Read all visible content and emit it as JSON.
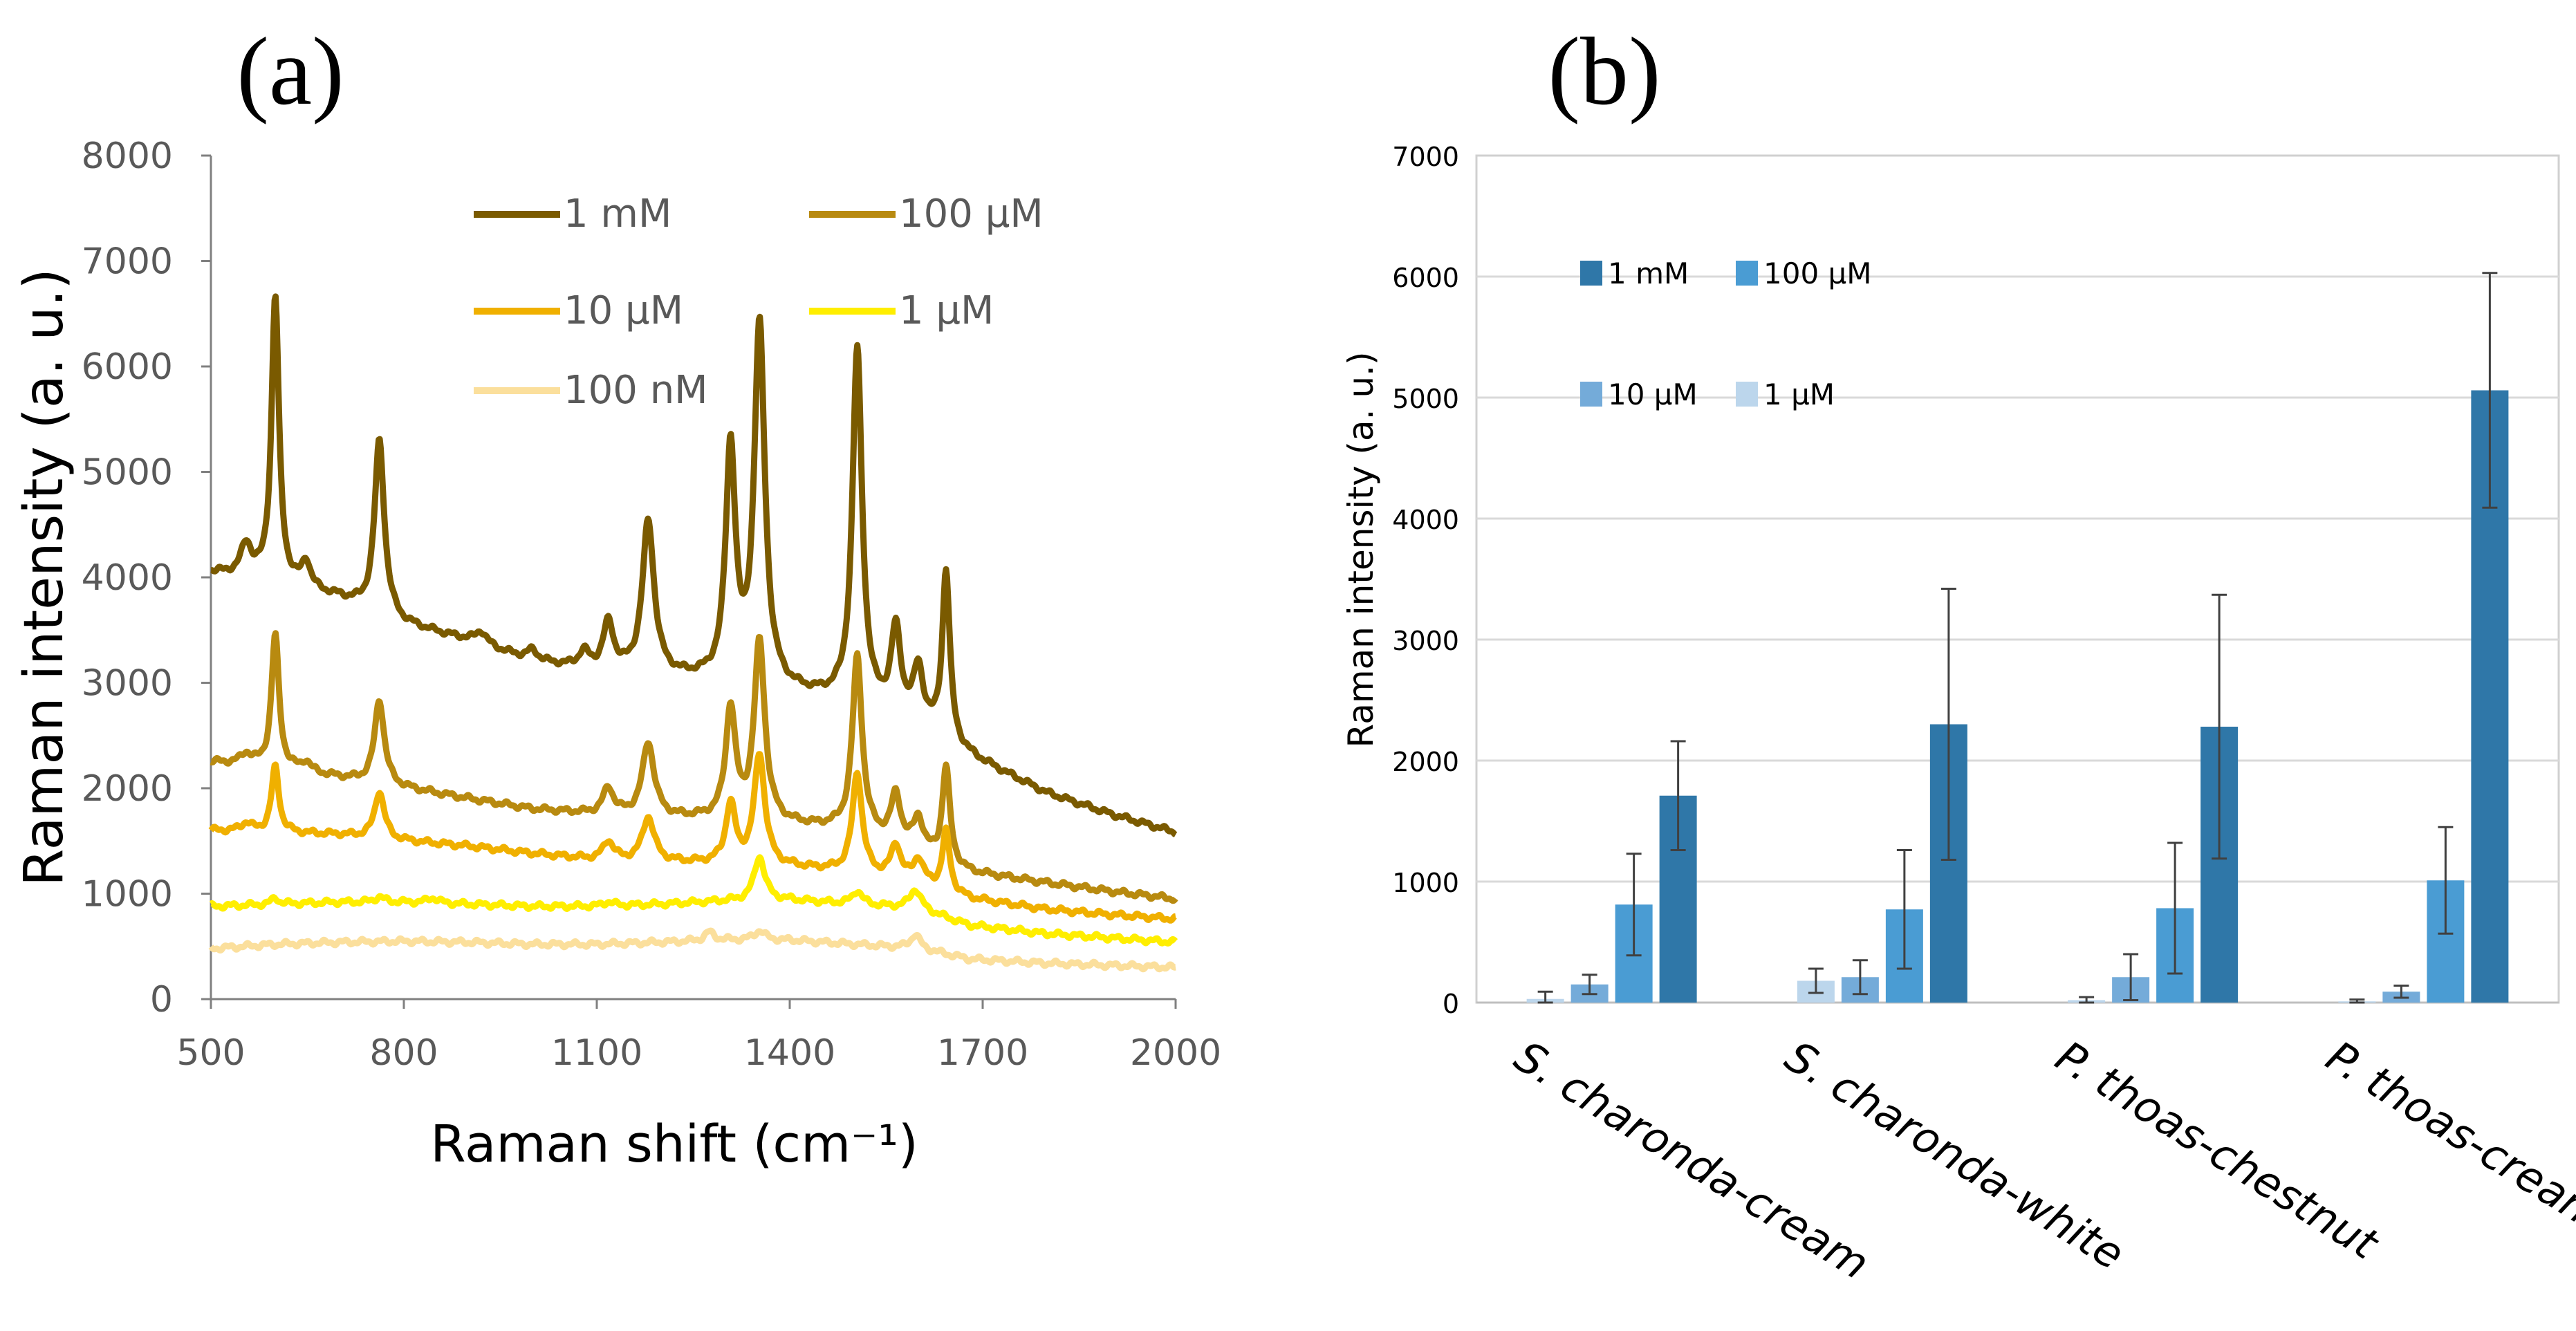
{
  "chart_data": [
    {
      "panel_label": "(a)",
      "type": "line",
      "title": "",
      "xlabel": "Raman shift (cm⁻¹)",
      "ylabel": "Raman intensity (a. u.)",
      "xlim": [
        500,
        2000
      ],
      "ylim": [
        0,
        8000
      ],
      "xticks": [
        500,
        800,
        1100,
        1400,
        1700,
        2000
      ],
      "yticks": [
        0,
        1000,
        2000,
        3000,
        4000,
        5000,
        6000,
        7000,
        8000
      ],
      "grid": false,
      "legend_position": "top",
      "series": [
        {
          "name": "1 mM",
          "color": "#7a5a00",
          "baseline_points": [
            [
              500,
              4050
            ],
            [
              600,
              3950
            ],
            [
              700,
              3800
            ],
            [
              800,
              3550
            ],
            [
              900,
              3400
            ],
            [
              1000,
              3200
            ],
            [
              1100,
              3100
            ],
            [
              1200,
              3050
            ],
            [
              1300,
              3000
            ],
            [
              1400,
              2900
            ],
            [
              1500,
              2800
            ],
            [
              1600,
              2600
            ],
            [
              1680,
              2300
            ],
            [
              1800,
              1950
            ],
            [
              1900,
              1750
            ],
            [
              2000,
              1580
            ]
          ],
          "peaks": [
            [
              555,
              300,
              10
            ],
            [
              600,
              2700,
              7
            ],
            [
              648,
              250,
              8
            ],
            [
              762,
              1650,
              9
            ],
            [
              920,
              120,
              10
            ],
            [
              1000,
              100,
              10
            ],
            [
              1080,
              150,
              10
            ],
            [
              1118,
              450,
              10
            ],
            [
              1180,
              1450,
              11
            ],
            [
              1308,
              2200,
              9
            ],
            [
              1353,
              3400,
              10
            ],
            [
              1505,
              3350,
              9
            ],
            [
              1565,
              800,
              9
            ],
            [
              1600,
              500,
              9
            ],
            [
              1643,
              1600,
              7
            ]
          ]
        },
        {
          "name": "100 μM",
          "color": "#b88a10",
          "baseline_points": [
            [
              500,
              2250
            ],
            [
              600,
              2200
            ],
            [
              700,
              2100
            ],
            [
              800,
              2000
            ],
            [
              900,
              1900
            ],
            [
              1000,
              1800
            ],
            [
              1100,
              1750
            ],
            [
              1200,
              1720
            ],
            [
              1300,
              1700
            ],
            [
              1400,
              1650
            ],
            [
              1500,
              1600
            ],
            [
              1600,
              1400
            ],
            [
              1680,
              1200
            ],
            [
              1800,
              1100
            ],
            [
              1900,
              1020
            ],
            [
              2000,
              950
            ]
          ],
          "peaks": [
            [
              555,
              100,
              10
            ],
            [
              600,
              1250,
              7
            ],
            [
              648,
              90,
              8
            ],
            [
              762,
              800,
              9
            ],
            [
              1118,
              250,
              10
            ],
            [
              1180,
              700,
              11
            ],
            [
              1308,
              1050,
              9
            ],
            [
              1353,
              1700,
              10
            ],
            [
              1505,
              1650,
              9
            ],
            [
              1565,
              450,
              9
            ],
            [
              1600,
              300,
              9
            ],
            [
              1643,
              900,
              7
            ]
          ]
        },
        {
          "name": "10 μM",
          "color": "#f0b000",
          "baseline_points": [
            [
              500,
              1600
            ],
            [
              600,
              1580
            ],
            [
              700,
              1560
            ],
            [
              800,
              1500
            ],
            [
              900,
              1450
            ],
            [
              1000,
              1380
            ],
            [
              1100,
              1320
            ],
            [
              1200,
              1300
            ],
            [
              1300,
              1280
            ],
            [
              1400,
              1250
            ],
            [
              1500,
              1200
            ],
            [
              1600,
              1100
            ],
            [
              1680,
              950
            ],
            [
              1800,
              850
            ],
            [
              1900,
              800
            ],
            [
              2000,
              760
            ]
          ],
          "peaks": [
            [
              555,
              80,
              10
            ],
            [
              600,
              620,
              7
            ],
            [
              762,
              450,
              9
            ],
            [
              1118,
              180,
              10
            ],
            [
              1180,
              420,
              11
            ],
            [
              1308,
              560,
              9
            ],
            [
              1353,
              1050,
              10
            ],
            [
              1505,
              950,
              9
            ],
            [
              1565,
              320,
              9
            ],
            [
              1600,
              220,
              9
            ],
            [
              1643,
              560,
              7
            ]
          ]
        },
        {
          "name": "1 μM",
          "color": "#ffee00",
          "baseline_points": [
            [
              500,
              880
            ],
            [
              600,
              900
            ],
            [
              700,
              920
            ],
            [
              800,
              920
            ],
            [
              900,
              900
            ],
            [
              1000,
              880
            ],
            [
              1100,
              880
            ],
            [
              1200,
              900
            ],
            [
              1300,
              930
            ],
            [
              1400,
              940
            ],
            [
              1500,
              900
            ],
            [
              1600,
              860
            ],
            [
              1680,
              700
            ],
            [
              1800,
              620
            ],
            [
              1900,
              580
            ],
            [
              2000,
              540
            ]
          ],
          "peaks": [
            [
              600,
              60,
              7
            ],
            [
              762,
              50,
              9
            ],
            [
              845,
              50,
              10
            ],
            [
              1118,
              40,
              10
            ],
            [
              1353,
              420,
              10
            ],
            [
              1505,
              130,
              9
            ],
            [
              1595,
              180,
              10
            ]
          ]
        },
        {
          "name": "100 nM",
          "color": "#fbdf9c",
          "baseline_points": [
            [
              500,
              480
            ],
            [
              600,
              520
            ],
            [
              700,
              540
            ],
            [
              800,
              550
            ],
            [
              900,
              540
            ],
            [
              1000,
              520
            ],
            [
              1100,
              520
            ],
            [
              1200,
              540
            ],
            [
              1300,
              560
            ],
            [
              1400,
              560
            ],
            [
              1500,
              520
            ],
            [
              1600,
              480
            ],
            [
              1680,
              380
            ],
            [
              1800,
              340
            ],
            [
              1900,
              320
            ],
            [
              2000,
              300
            ]
          ],
          "peaks": [
            [
              1275,
              80,
              9
            ],
            [
              1353,
              90,
              10
            ],
            [
              1595,
              130,
              9
            ]
          ]
        }
      ]
    },
    {
      "panel_label": "(b)",
      "type": "bar",
      "title": "",
      "xlabel": "",
      "ylabel": "Raman intensity (a. u.)",
      "ylim": [
        0,
        7000
      ],
      "yticks": [
        0,
        1000,
        2000,
        3000,
        4000,
        5000,
        6000,
        7000
      ],
      "grid": true,
      "legend_position": "top-left",
      "categories": [
        "S. charonda-cream",
        "S. charonda-white",
        "P. thoas-chestnut",
        "P. thoas-cream"
      ],
      "series": [
        {
          "name": "1 μM",
          "color": "#bcd6ec",
          "values": [
            30,
            180,
            20,
            10
          ],
          "errors": [
            60,
            100,
            25,
            15
          ]
        },
        {
          "name": "10 μM",
          "color": "#74abd9",
          "values": [
            150,
            210,
            210,
            90
          ],
          "errors": [
            80,
            140,
            190,
            50
          ]
        },
        {
          "name": "100 μM",
          "color": "#4a9cd3",
          "values": [
            810,
            770,
            780,
            1010
          ],
          "errors": [
            420,
            490,
            540,
            440
          ]
        },
        {
          "name": "1 mM",
          "color": "#2f77a8",
          "values": [
            1710,
            2300,
            2280,
            5060
          ],
          "errors": [
            450,
            1120,
            1090,
            970
          ]
        }
      ],
      "legend_order": [
        "1 mM",
        "100 μM",
        "10 μM",
        "1 μM"
      ]
    }
  ]
}
